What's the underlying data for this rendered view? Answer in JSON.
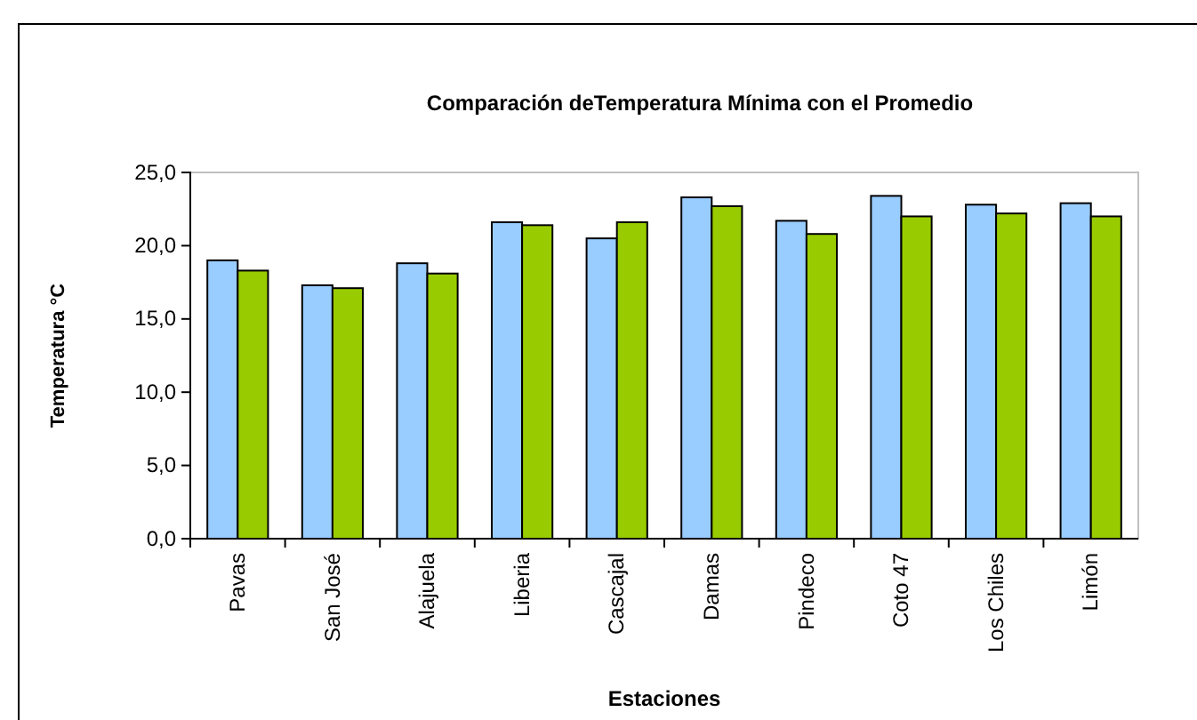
{
  "chart_data": {
    "type": "bar",
    "title": "Comparación deTemperatura Mínima con el Promedio",
    "xlabel": "Estaciones",
    "ylabel": "Temperatura °C",
    "categories": [
      "Pavas",
      "San José",
      "Alajuela",
      "Liberia",
      "Cascajal",
      "Damas",
      "Pindeco",
      "Coto 47",
      "Los Chiles",
      "Limón"
    ],
    "series": [
      {
        "color": "#99ccff",
        "values": [
          19.0,
          17.3,
          18.8,
          21.6,
          20.5,
          23.3,
          21.7,
          23.4,
          22.8,
          22.9
        ]
      },
      {
        "color": "#99cc00",
        "values": [
          18.3,
          17.1,
          18.1,
          21.4,
          21.6,
          22.7,
          20.8,
          22.0,
          22.2,
          22.0
        ]
      }
    ],
    "ylim": [
      0,
      25
    ],
    "yticks": [
      {
        "value": 0,
        "label": "0,0"
      },
      {
        "value": 5,
        "label": "5,0"
      },
      {
        "value": 10,
        "label": "10,0"
      },
      {
        "value": 15,
        "label": "15,0"
      },
      {
        "value": 20,
        "label": "20,0"
      },
      {
        "value": 25,
        "label": "25,0"
      }
    ],
    "grid": false
  }
}
